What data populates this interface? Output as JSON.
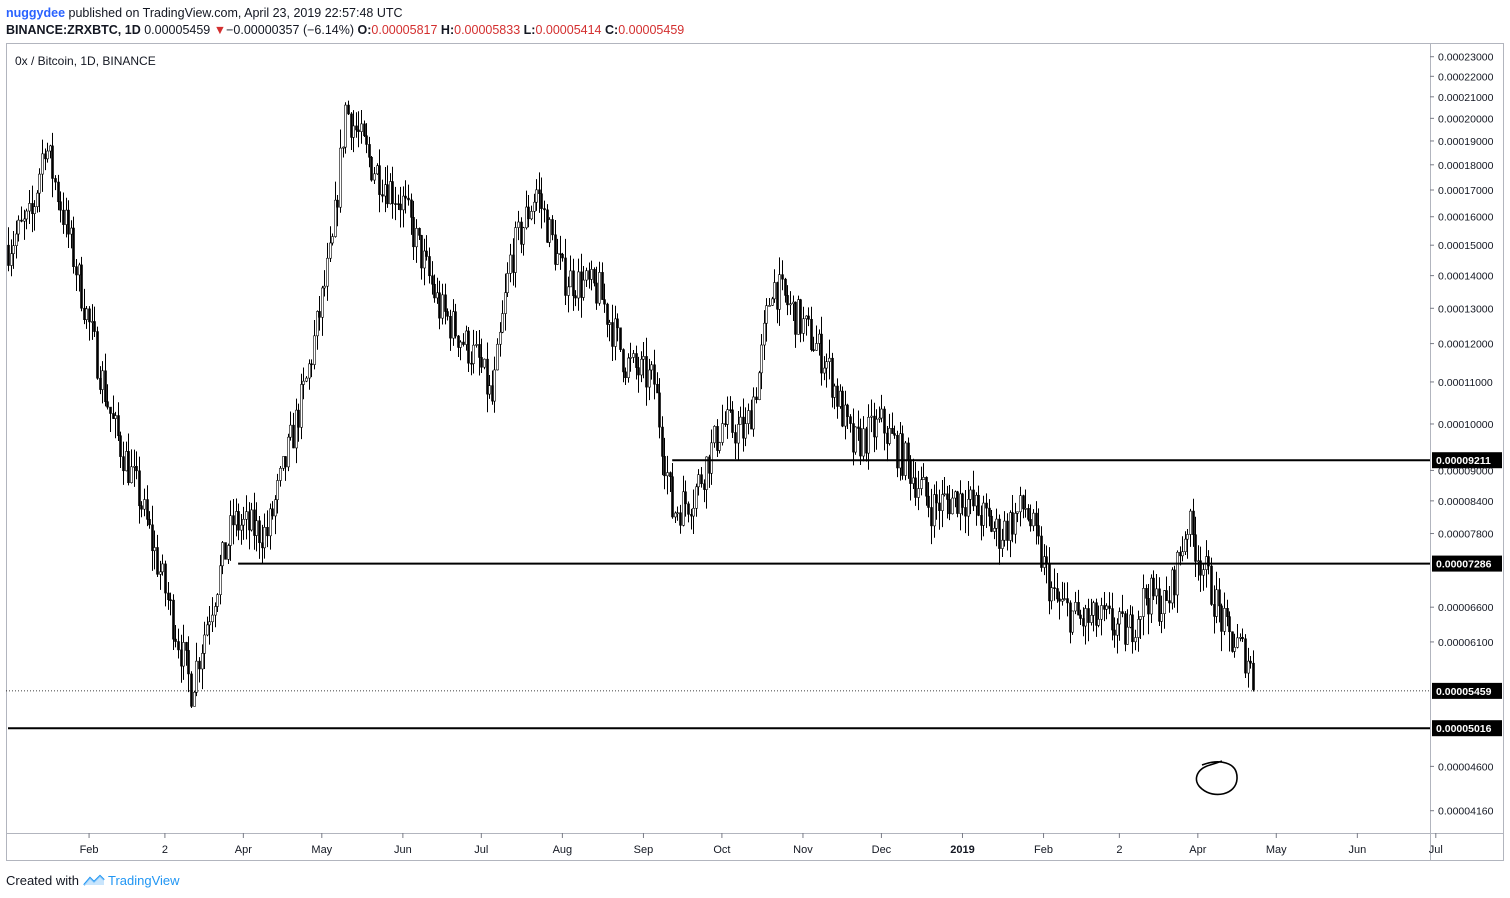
{
  "header": {
    "author": "nuggydee",
    "published_text": "published on TradingView.com, April 23, 2019 22:57:48 UTC",
    "symbol_line": "BINANCE:ZRXBTC, 1D",
    "last": "0.00005459",
    "change_arrow": "▼",
    "change": "−0.00000357 (−6.14%)",
    "open_label": "O:",
    "open": "0.00005817",
    "high_label": "H:",
    "high": "0.00005833",
    "low_label": "L:",
    "low": "0.00005414",
    "close_label": "C:",
    "close": "0.00005459"
  },
  "footer": {
    "created_with": "Created with",
    "brand": "TradingView"
  },
  "chart_data": {
    "type": "candlestick",
    "title": "0x / Bitcoin, 1D, BINANCE",
    "scale": "log",
    "ylim": [
      4e-05,
      0.000233
    ],
    "y_ticks": [
      "0.00023000",
      "0.00022000",
      "0.00021000",
      "0.00020000",
      "0.00019000",
      "0.00018000",
      "0.00017000",
      "0.00016000",
      "0.00015000",
      "0.00014000",
      "0.00013000",
      "0.00012000",
      "0.00011000",
      "0.00010000",
      "0.00009000",
      "0.00008400",
      "0.00007800",
      "0.00006600",
      "0.00006100",
      "0.00004600",
      "0.00004160"
    ],
    "x_ticks": [
      "Feb",
      "2",
      "Apr",
      "May",
      "Jun",
      "Jul",
      "Aug",
      "Sep",
      "Oct",
      "Nov",
      "Dec",
      "2019",
      "Feb",
      "2",
      "Apr",
      "May",
      "Jun",
      "Jul"
    ],
    "horizontal_levels": [
      {
        "label": "0.00009211",
        "value": 9.211e-05,
        "from": "2018-09-12"
      },
      {
        "label": "0.00007286",
        "value": 7.286e-05,
        "from": "2018-03-30"
      },
      {
        "label": "0.00005016",
        "value": 5.016e-05,
        "from": "2018-01-01"
      }
    ],
    "last_price": {
      "label": "0.00005459",
      "value": 5.459e-05
    },
    "annotation": "hand-drawn circle near 0.00005016 on Apr 2019",
    "series_keypoints": [
      [
        "2018-01-01",
        0.00015
      ],
      [
        "2018-01-10",
        0.00016
      ],
      [
        "2018-01-15",
        0.00019
      ],
      [
        "2018-01-25",
        0.00015
      ],
      [
        "2018-02-01",
        0.000125
      ],
      [
        "2018-02-10",
        0.0001
      ],
      [
        "2018-02-20",
        8.5e-05
      ],
      [
        "2018-03-01",
        7e-05
      ],
      [
        "2018-03-12",
        5.5e-05
      ],
      [
        "2018-03-18",
        6.4e-05
      ],
      [
        "2018-03-28",
        8e-05
      ],
      [
        "2018-04-10",
        7.8e-05
      ],
      [
        "2018-04-25",
        0.00011
      ],
      [
        "2018-05-05",
        0.00015
      ],
      [
        "2018-05-10",
        0.000205
      ],
      [
        "2018-05-20",
        0.00018
      ],
      [
        "2018-06-01",
        0.000165
      ],
      [
        "2018-06-15",
        0.00013
      ],
      [
        "2018-06-30",
        0.000115
      ],
      [
        "2018-07-05",
        0.000105
      ],
      [
        "2018-07-12",
        0.000145
      ],
      [
        "2018-07-22",
        0.00017
      ],
      [
        "2018-08-01",
        0.00014
      ],
      [
        "2018-08-15",
        0.000135
      ],
      [
        "2018-08-25",
        0.000115
      ],
      [
        "2018-09-05",
        0.00011
      ],
      [
        "2018-09-12",
        8.2e-05
      ],
      [
        "2018-09-20",
        8.5e-05
      ],
      [
        "2018-10-01",
        0.0001
      ],
      [
        "2018-10-10",
        9.8e-05
      ],
      [
        "2018-10-15",
        0.000112
      ],
      [
        "2018-10-20",
        0.000138
      ],
      [
        "2018-11-01",
        0.000125
      ],
      [
        "2018-11-10",
        0.000115
      ],
      [
        "2018-11-20",
        9.5e-05
      ],
      [
        "2018-12-01",
        0.0001
      ],
      [
        "2018-12-10",
        9.2e-05
      ],
      [
        "2018-12-20",
        8.3e-05
      ],
      [
        "2019-01-01",
        8.5e-05
      ],
      [
        "2019-01-15",
        7.8e-05
      ],
      [
        "2019-01-25",
        8.3e-05
      ],
      [
        "2019-02-05",
        6.7e-05
      ],
      [
        "2019-02-15",
        6.4e-05
      ],
      [
        "2019-02-25",
        6.4e-05
      ],
      [
        "2019-03-05",
        6.2e-05
      ],
      [
        "2019-03-12",
        6.8e-05
      ],
      [
        "2019-03-20",
        6.6e-05
      ],
      [
        "2019-03-28",
        8e-05
      ],
      [
        "2019-04-05",
        7e-05
      ],
      [
        "2019-04-12",
        6.2e-05
      ],
      [
        "2019-04-20",
        5.9e-05
      ],
      [
        "2019-04-23",
        5.459e-05
      ]
    ]
  }
}
